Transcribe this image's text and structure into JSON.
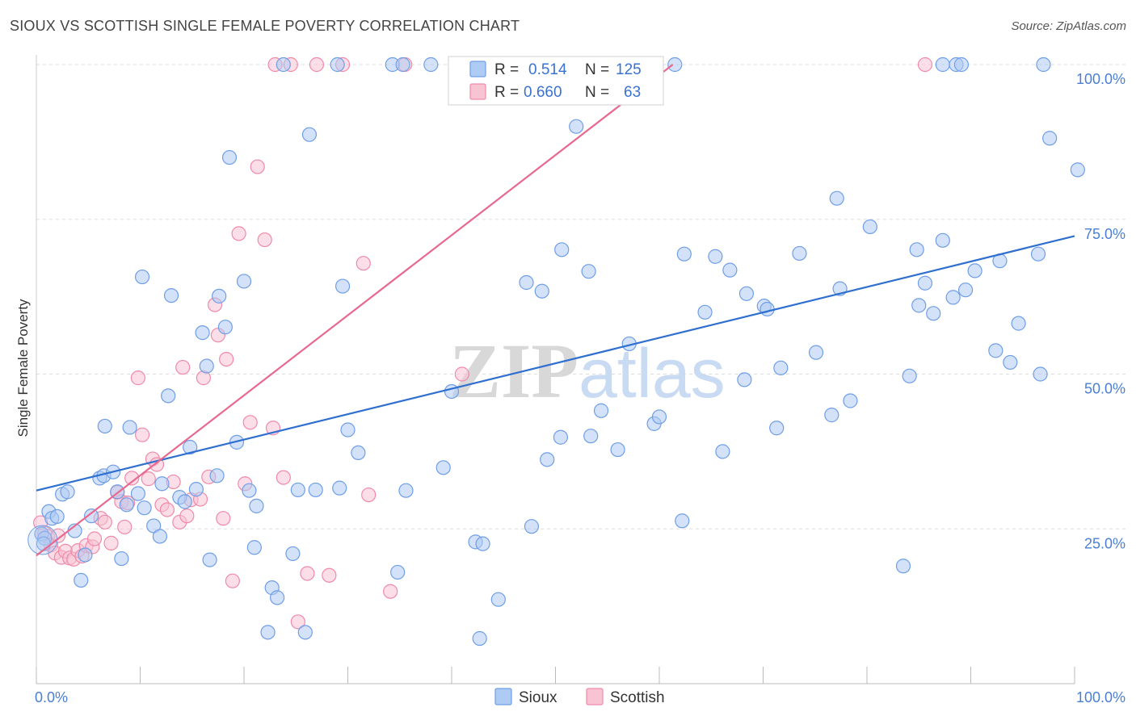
{
  "title": "SIOUX VS SCOTTISH SINGLE FEMALE POVERTY CORRELATION CHART",
  "source": "Source: ZipAtlas.com",
  "watermark": {
    "zip": "ZIP",
    "atlas": "atlas"
  },
  "colors": {
    "sioux": "#6f9ee8",
    "sioux_fill": "#aecbf3",
    "scottish": "#f08aa8",
    "scottish_fill": "#f8c3d3",
    "sioux_line": "#2f6fd0",
    "scottish_line": "#e8688f",
    "tick_text": "#4a7fd4",
    "grid": "#dddddd"
  },
  "legend": {
    "r_label": "R =",
    "n_label": "N =",
    "sioux": {
      "r": "0.514",
      "n": "125"
    },
    "scottish": {
      "r": "0.660",
      "n": "63"
    }
  },
  "chart_data": {
    "type": "scatter",
    "title": "SIOUX VS SCOTTISH SINGLE FEMALE POVERTY CORRELATION CHART",
    "xlabel": "",
    "ylabel": "Single Female Poverty",
    "x_tick_labels": [
      "0.0%",
      "100.0%"
    ],
    "y_tick_labels": [
      "25.0%",
      "50.0%",
      "75.0%",
      "100.0%"
    ],
    "y_ticks": [
      25,
      50,
      75,
      100
    ],
    "xlim": [
      0,
      100
    ],
    "ylim": [
      0,
      100
    ],
    "grid": true,
    "legend_position": "top-center",
    "series": [
      {
        "name": "Sioux",
        "r": 0.514,
        "n": 125,
        "trend": {
          "x": [
            0,
            100
          ],
          "y": [
            31.2,
            72.3
          ]
        },
        "points": [
          [
            0.5,
            24.2
          ],
          [
            0.8,
            23.5
          ],
          [
            1.2,
            27.8
          ],
          [
            1.5,
            26.7
          ],
          [
            2.0,
            27.0
          ],
          [
            2.5,
            30.6
          ],
          [
            3.0,
            31.0
          ],
          [
            3.7,
            24.7
          ],
          [
            4.3,
            16.7
          ],
          [
            4.7,
            20.8
          ],
          [
            5.3,
            27.1
          ],
          [
            6.1,
            33.2
          ],
          [
            6.5,
            33.6
          ],
          [
            6.6,
            41.6
          ],
          [
            7.4,
            34.2
          ],
          [
            7.8,
            31.0
          ],
          [
            8.2,
            20.2
          ],
          [
            8.7,
            28.9
          ],
          [
            9.0,
            41.4
          ],
          [
            9.8,
            30.7
          ],
          [
            10.2,
            65.7
          ],
          [
            10.4,
            28.4
          ],
          [
            11.3,
            25.5
          ],
          [
            11.9,
            23.8
          ],
          [
            12.1,
            32.3
          ],
          [
            12.7,
            46.5
          ],
          [
            13.0,
            62.7
          ],
          [
            13.8,
            30.1
          ],
          [
            14.3,
            29.4
          ],
          [
            14.8,
            38.2
          ],
          [
            15.4,
            31.4
          ],
          [
            16.0,
            56.7
          ],
          [
            16.4,
            51.3
          ],
          [
            16.7,
            20.0
          ],
          [
            17.4,
            33.6
          ],
          [
            17.6,
            62.6
          ],
          [
            18.2,
            57.6
          ],
          [
            18.6,
            85.0
          ],
          [
            19.3,
            39.0
          ],
          [
            20.0,
            65.0
          ],
          [
            20.5,
            31.2
          ],
          [
            21.0,
            22.0
          ],
          [
            21.2,
            28.7
          ],
          [
            22.7,
            15.5
          ],
          [
            22.3,
            8.3
          ],
          [
            23.2,
            13.9
          ],
          [
            23.8,
            100.0
          ],
          [
            24.7,
            21.0
          ],
          [
            25.2,
            31.3
          ],
          [
            25.9,
            8.3
          ],
          [
            26.3,
            88.7
          ],
          [
            26.9,
            31.3
          ],
          [
            29.0,
            100.0
          ],
          [
            29.2,
            31.6
          ],
          [
            29.5,
            64.2
          ],
          [
            30.0,
            41.0
          ],
          [
            31.0,
            37.3
          ],
          [
            34.3,
            100.0
          ],
          [
            34.8,
            18.0
          ],
          [
            35.3,
            100.0
          ],
          [
            35.6,
            31.2
          ],
          [
            38.0,
            100.0
          ],
          [
            39.2,
            34.9
          ],
          [
            40.0,
            47.2
          ],
          [
            42.3,
            22.9
          ],
          [
            42.7,
            7.3
          ],
          [
            43.0,
            22.6
          ],
          [
            44.5,
            13.6
          ],
          [
            47.2,
            64.8
          ],
          [
            47.7,
            25.4
          ],
          [
            48.7,
            63.4
          ],
          [
            49.2,
            36.2
          ],
          [
            50.5,
            39.8
          ],
          [
            50.6,
            70.1
          ],
          [
            52.0,
            90.0
          ],
          [
            53.2,
            66.6
          ],
          [
            53.4,
            40.0
          ],
          [
            54.4,
            44.1
          ],
          [
            56.0,
            37.8
          ],
          [
            57.1,
            54.9
          ],
          [
            59.5,
            42.0
          ],
          [
            60.0,
            43.1
          ],
          [
            61.5,
            100.0
          ],
          [
            62.2,
            26.3
          ],
          [
            62.4,
            69.4
          ],
          [
            64.4,
            60.0
          ],
          [
            65.4,
            69.0
          ],
          [
            66.1,
            37.5
          ],
          [
            66.8,
            66.8
          ],
          [
            68.2,
            49.1
          ],
          [
            68.4,
            63.0
          ],
          [
            70.1,
            61.0
          ],
          [
            70.4,
            60.5
          ],
          [
            71.3,
            41.3
          ],
          [
            71.7,
            51.0
          ],
          [
            73.5,
            69.5
          ],
          [
            75.1,
            53.5
          ],
          [
            76.6,
            43.4
          ],
          [
            77.1,
            78.4
          ],
          [
            77.4,
            63.8
          ],
          [
            78.4,
            45.7
          ],
          [
            80.3,
            73.8
          ],
          [
            83.5,
            19.0
          ],
          [
            84.1,
            49.7
          ],
          [
            84.8,
            70.1
          ],
          [
            85.0,
            61.1
          ],
          [
            85.6,
            64.7
          ],
          [
            86.4,
            59.8
          ],
          [
            87.3,
            71.6
          ],
          [
            87.3,
            100.0
          ],
          [
            88.3,
            62.4
          ],
          [
            88.6,
            100.0
          ],
          [
            89.1,
            100.0
          ],
          [
            89.5,
            63.6
          ],
          [
            90.4,
            66.7
          ],
          [
            92.4,
            53.8
          ],
          [
            92.8,
            68.3
          ],
          [
            93.8,
            51.9
          ],
          [
            94.6,
            58.2
          ],
          [
            96.5,
            69.4
          ],
          [
            97.0,
            100.0
          ],
          [
            96.7,
            50.0
          ],
          [
            97.6,
            88.1
          ],
          [
            100.3,
            83.0
          ],
          [
            0.7,
            22.6
          ]
        ]
      },
      {
        "name": "Scottish",
        "r": 0.66,
        "n": 63,
        "trend": {
          "x": [
            0,
            61.3
          ],
          "y": [
            20.7,
            100.0
          ]
        },
        "points": [
          [
            0.4,
            26.0
          ],
          [
            0.8,
            24.3
          ],
          [
            1.1,
            23.8
          ],
          [
            1.4,
            22.4
          ],
          [
            1.8,
            21.1
          ],
          [
            2.1,
            23.9
          ],
          [
            2.4,
            20.4
          ],
          [
            2.8,
            21.4
          ],
          [
            3.2,
            20.3
          ],
          [
            3.6,
            20.1
          ],
          [
            4.0,
            21.5
          ],
          [
            4.4,
            20.6
          ],
          [
            4.8,
            22.3
          ],
          [
            5.4,
            22.1
          ],
          [
            5.6,
            23.4
          ],
          [
            6.2,
            26.7
          ],
          [
            6.6,
            26.1
          ],
          [
            7.2,
            22.7
          ],
          [
            7.8,
            30.9
          ],
          [
            8.2,
            29.4
          ],
          [
            8.5,
            25.3
          ],
          [
            8.8,
            29.2
          ],
          [
            9.2,
            33.2
          ],
          [
            9.8,
            49.4
          ],
          [
            10.2,
            40.2
          ],
          [
            10.8,
            33.1
          ],
          [
            11.2,
            36.3
          ],
          [
            11.6,
            35.4
          ],
          [
            12.1,
            28.9
          ],
          [
            12.6,
            28.1
          ],
          [
            13.2,
            32.6
          ],
          [
            13.8,
            26.1
          ],
          [
            14.1,
            51.1
          ],
          [
            14.5,
            27.1
          ],
          [
            14.9,
            29.7
          ],
          [
            15.8,
            29.8
          ],
          [
            16.1,
            49.4
          ],
          [
            16.6,
            33.4
          ],
          [
            17.2,
            61.2
          ],
          [
            17.5,
            56.3
          ],
          [
            18.0,
            26.7
          ],
          [
            18.3,
            52.4
          ],
          [
            18.9,
            16.6
          ],
          [
            19.5,
            72.7
          ],
          [
            20.1,
            32.3
          ],
          [
            20.6,
            42.2
          ],
          [
            21.3,
            83.5
          ],
          [
            22.0,
            71.7
          ],
          [
            22.8,
            41.3
          ],
          [
            23.0,
            100.0
          ],
          [
            23.8,
            33.3
          ],
          [
            24.5,
            100.0
          ],
          [
            25.2,
            10.0
          ],
          [
            26.1,
            17.8
          ],
          [
            27.0,
            100.0
          ],
          [
            28.2,
            17.5
          ],
          [
            29.5,
            100.0
          ],
          [
            31.5,
            67.9
          ],
          [
            32.0,
            30.5
          ],
          [
            34.1,
            14.9
          ],
          [
            35.5,
            100.0
          ],
          [
            41.0,
            50.0
          ],
          [
            85.6,
            100.0
          ]
        ]
      }
    ]
  },
  "bottom_legend": [
    {
      "label": "Sioux"
    },
    {
      "label": "Scottish"
    }
  ]
}
